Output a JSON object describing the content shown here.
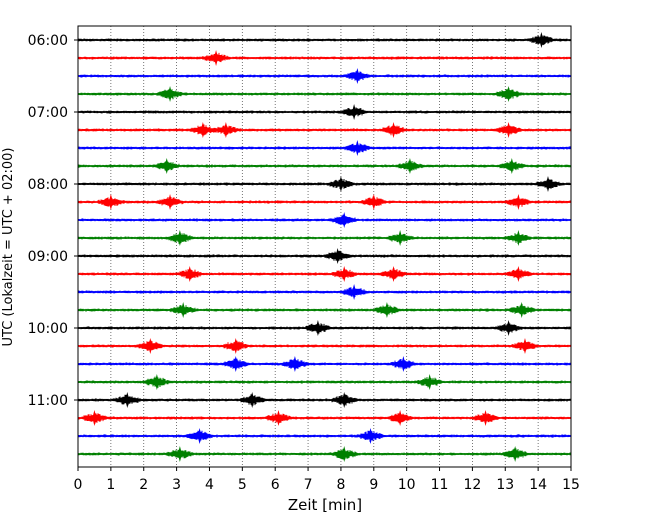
{
  "chart_data": {
    "type": "line",
    "title": "",
    "xlabel": "Zeit  [min]",
    "ylabel": "UTC (Lokalzeit = UTC + 02:00)",
    "xlim": [
      0,
      15
    ],
    "x_ticks": [
      "0",
      "1",
      "2",
      "3",
      "4",
      "5",
      "6",
      "7",
      "8",
      "9",
      "10",
      "11",
      "12",
      "13",
      "14",
      "15"
    ],
    "y_ticks": [
      "06:00",
      "07:00",
      "08:00",
      "09:00",
      "10:00",
      "11:00"
    ],
    "grid": "vertical dotted lines at each minute",
    "legend": "none",
    "color_cycle": [
      "#000000",
      "#ff0000",
      "#0000ff",
      "#008000"
    ],
    "trace_interval_minutes": 15,
    "series": [
      {
        "values": [
          14.1
        ]
      },
      {
        "values": [
          4.2
        ]
      },
      {
        "values": [
          8.5
        ]
      },
      {
        "values": [
          2.8,
          13.1
        ]
      },
      {
        "values": [
          8.4
        ]
      },
      {
        "values": [
          3.8,
          4.5,
          9.6,
          13.1
        ]
      },
      {
        "values": [
          8.5
        ]
      },
      {
        "values": [
          2.7,
          10.1,
          13.2
        ]
      },
      {
        "values": [
          8.0,
          14.3
        ]
      },
      {
        "values": [
          1.0,
          2.8,
          9.0,
          13.4
        ]
      },
      {
        "values": [
          8.1
        ]
      },
      {
        "values": [
          3.1,
          9.8,
          13.4
        ]
      },
      {
        "values": [
          7.9
        ]
      },
      {
        "values": [
          3.4,
          8.1,
          9.6,
          13.4
        ]
      },
      {
        "values": [
          8.4
        ]
      },
      {
        "values": [
          3.2,
          9.4,
          13.5
        ]
      },
      {
        "values": [
          7.3,
          13.1
        ]
      },
      {
        "values": [
          2.2,
          4.8,
          13.6
        ]
      },
      {
        "values": [
          4.8,
          6.6,
          9.9
        ]
      },
      {
        "values": [
          2.4,
          10.7
        ]
      },
      {
        "values": [
          1.5,
          5.3,
          8.1
        ]
      },
      {
        "values": [
          0.5,
          6.1,
          9.8,
          12.4
        ]
      },
      {
        "values": [
          3.7,
          8.9
        ]
      },
      {
        "values": [
          3.1,
          8.1,
          13.3
        ]
      }
    ]
  }
}
